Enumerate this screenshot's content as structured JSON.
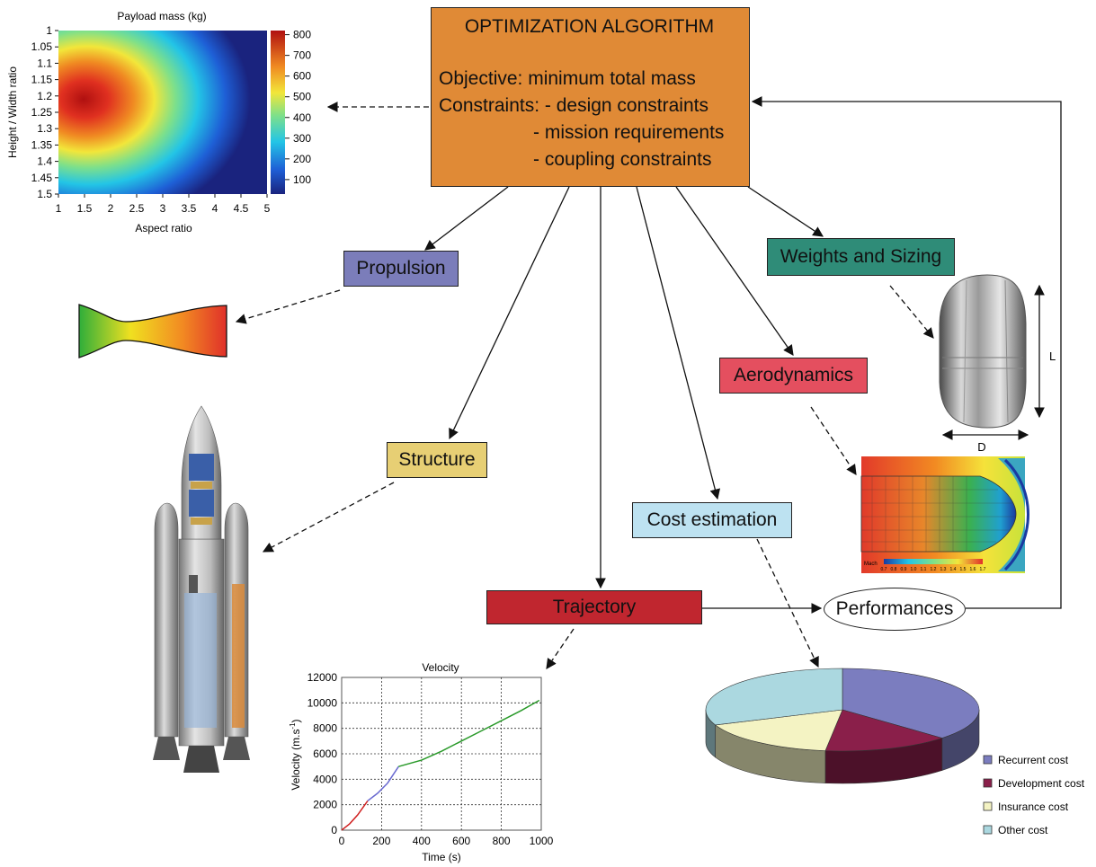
{
  "optimization": {
    "title": "OPTIMIZATION ALGORITHM",
    "objective": "Objective: minimum total mass",
    "constraints_1": "Constraints: - design constraints",
    "constraints_2": "                  - mission requirements",
    "constraints_3": "                  - coupling constraints",
    "color": "#e08a36"
  },
  "disciplines": {
    "propulsion": "Propulsion",
    "weights": "Weights and Sizing",
    "aerodynamics": "Aerodynamics",
    "structure": "Structure",
    "cost": "Cost estimation",
    "trajectory": "Trajectory",
    "performances": "Performances"
  },
  "colors": {
    "propulsion": "#7b7dba",
    "weights": "#2f8c78",
    "aerodynamics": "#e44f5f",
    "structure": "#e7cf74",
    "cost": "#bde2f1",
    "trajectory": "#c0262f"
  },
  "capsule": {
    "length_label": "L",
    "diameter_label": "D"
  },
  "mach_label": "Mach",
  "mach_ticks": [
    "0.7",
    "0.8",
    "0.9",
    "1.0",
    "1.1",
    "1.2",
    "1.3",
    "1.4",
    "1.5",
    "1.6",
    "1.7"
  ],
  "chart_data": [
    {
      "type": "heatmap",
      "title": "Payload mass (kg)",
      "xlabel": "Aspect ratio",
      "ylabel": "Height / Width ratio",
      "x_ticks": [
        "1",
        "1.5",
        "2",
        "2.5",
        "3",
        "3.5",
        "4",
        "4.5",
        "5"
      ],
      "y_ticks": [
        "1",
        "1.05",
        "1.1",
        "1.15",
        "1.2",
        "1.25",
        "1.3",
        "1.35",
        "1.4",
        "1.45",
        "1.5"
      ],
      "xlim": [
        1,
        5
      ],
      "ylim": [
        1,
        1.5
      ],
      "colorbar_ticks": [
        "800",
        "700",
        "600",
        "500",
        "400",
        "300",
        "200",
        "100"
      ],
      "colorbar_range": [
        30,
        820
      ],
      "peak": {
        "x": 1.5,
        "y": 1.15,
        "value": 820
      }
    },
    {
      "type": "line",
      "title": "Velocity",
      "xlabel": "Time (s)",
      "ylabel": "Velocity (m.s",
      "ylabel_sup": "-1",
      "ylabel_end": ")",
      "x_ticks": [
        "0",
        "200",
        "400",
        "600",
        "800",
        "1000"
      ],
      "y_ticks": [
        "0",
        "2000",
        "4000",
        "6000",
        "8000",
        "10000",
        "12000"
      ],
      "xlim": [
        0,
        1000
      ],
      "ylim": [
        0,
        12000
      ],
      "grid": true,
      "series": [
        {
          "color": "#d02020",
          "points": [
            [
              0,
              0
            ],
            [
              40,
              500
            ],
            [
              80,
              1200
            ],
            [
              130,
              2300
            ]
          ]
        },
        {
          "color": "#6a6ad0",
          "points": [
            [
              130,
              2300
            ],
            [
              180,
              2900
            ],
            [
              230,
              3700
            ],
            [
              285,
              5000
            ]
          ]
        },
        {
          "color": "#2a9a2a",
          "points": [
            [
              285,
              5000
            ],
            [
              400,
              5500
            ],
            [
              500,
              6200
            ],
            [
              600,
              7000
            ],
            [
              700,
              7800
            ],
            [
              800,
              8600
            ],
            [
              900,
              9400
            ],
            [
              990,
              10200
            ]
          ]
        }
      ]
    },
    {
      "type": "pie",
      "legend": [
        "Recurrent cost",
        "Development cost",
        "Insurance cost",
        "Other cost"
      ],
      "values": [
        37,
        15,
        17,
        31
      ],
      "colors": [
        "#7b7dbf",
        "#8a1f4a",
        "#f4f3c3",
        "#abd8e0"
      ],
      "legend_position": "bottom-right"
    }
  ]
}
